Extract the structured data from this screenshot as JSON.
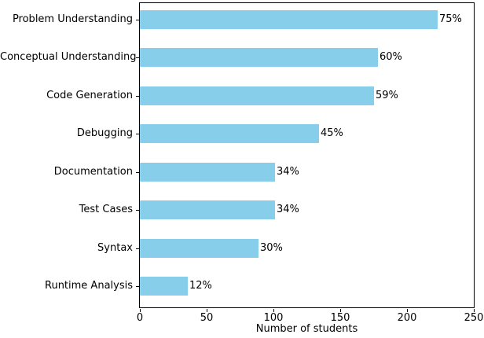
{
  "chart_data": {
    "type": "bar",
    "orientation": "horizontal",
    "title": "",
    "xlabel": "Number of students",
    "ylabel": "",
    "categories": [
      "Problem Understanding",
      "Conceptual Understanding",
      "Code Generation",
      "Debugging",
      "Documentation",
      "Test Cases",
      "Syntax",
      "Runtime Analysis"
    ],
    "values": [
      223,
      178,
      175,
      134,
      101,
      101,
      89,
      36
    ],
    "bar_labels": [
      "75%",
      "60%",
      "59%",
      "45%",
      "34%",
      "34%",
      "30%",
      "12%"
    ],
    "xlim": [
      0,
      250
    ],
    "x_ticks": [
      0,
      50,
      100,
      150,
      200,
      250
    ],
    "bar_color": "#87CEEB",
    "spine_color": "#000000",
    "text_color": "#000000",
    "background_color": "#ffffff",
    "grid": false,
    "legend": false
  }
}
